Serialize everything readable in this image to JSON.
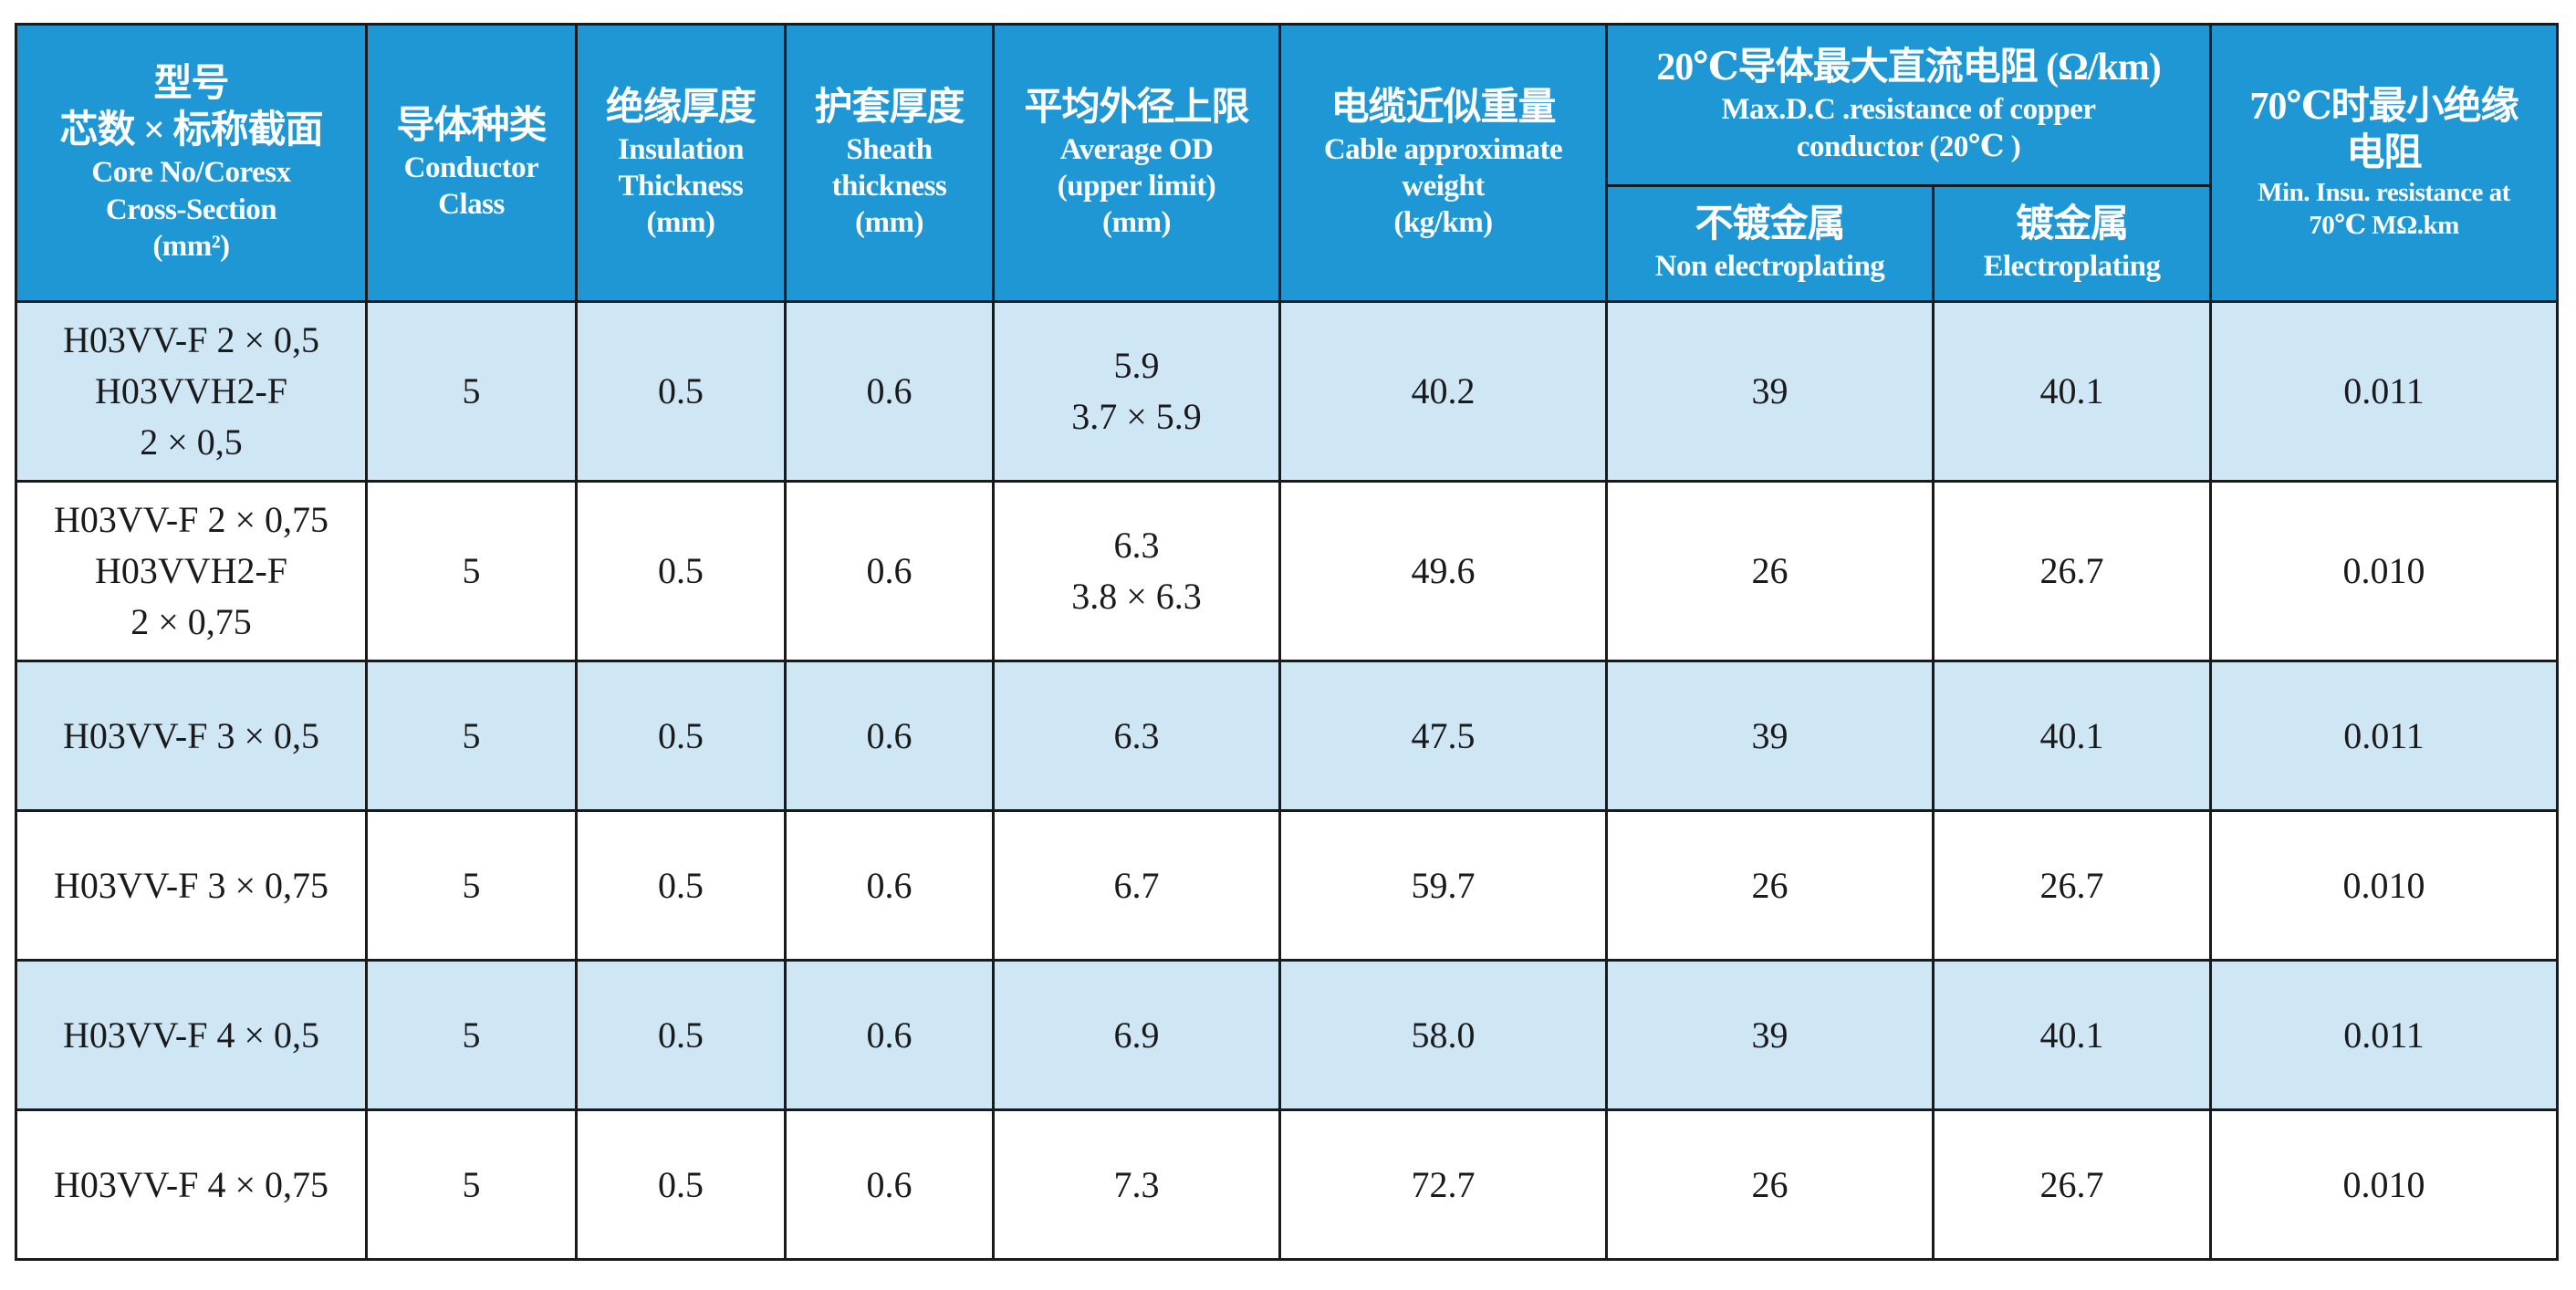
{
  "header": {
    "model": {
      "zh1": "型号",
      "zh2": "芯数 × 标称截面",
      "en1": "Core No/Coresx",
      "en2": "Cross-Section",
      "en3": "(mm²)"
    },
    "conductor": {
      "zh": "导体种类",
      "en1": "Conductor",
      "en2": "Class"
    },
    "insulation": {
      "zh": "绝缘厚度",
      "en1": "Insulation",
      "en2": "Thickness",
      "en3": "(mm)"
    },
    "sheath": {
      "zh": "护套厚度",
      "en1": "Sheath",
      "en2": "thickness",
      "en3": "(mm)"
    },
    "od": {
      "zh": "平均外径上限",
      "en1": "Average OD",
      "en2": "(upper limit)",
      "en3": "(mm)"
    },
    "weight": {
      "zh": "电缆近似重量",
      "en1": "Cable approximate",
      "en2": "weight",
      "en3": "(kg/km)"
    },
    "resistance": {
      "zh": "20℃导体最大直流电阻 (Ω/km)",
      "en1": "Max.D.C .resistance of copper",
      "en2": "conductor (20℃ )",
      "non": {
        "zh": "不镀金属",
        "en": "Non electroplating"
      },
      "plated": {
        "zh": "镀金属",
        "en": "Electroplating"
      }
    },
    "insu_res": {
      "zh1": "70℃时最小绝缘",
      "zh2": "电阻",
      "en1": "Min. Insu. resistance at",
      "en2": "70℃ MΩ.km"
    }
  },
  "rows": [
    {
      "model": [
        "H03VV-F 2 × 0,5",
        "H03VVH2-F",
        "2 × 0,5"
      ],
      "cls": "5",
      "ins": "0.5",
      "sh": "0.6",
      "od": [
        "5.9",
        "3.7 × 5.9"
      ],
      "wt": "40.2",
      "non": "39",
      "pl": "40.1",
      "ir": "0.011"
    },
    {
      "model": [
        "H03VV-F 2 × 0,75",
        "H03VVH2-F",
        "2 × 0,75"
      ],
      "cls": "5",
      "ins": "0.5",
      "sh": "0.6",
      "od": [
        "6.3",
        "3.8 × 6.3"
      ],
      "wt": "49.6",
      "non": "26",
      "pl": "26.7",
      "ir": "0.010"
    },
    {
      "model": [
        "H03VV-F 3 × 0,5"
      ],
      "cls": "5",
      "ins": "0.5",
      "sh": "0.6",
      "od": [
        "6.3"
      ],
      "wt": "47.5",
      "non": "39",
      "pl": "40.1",
      "ir": "0.011"
    },
    {
      "model": [
        "H03VV-F 3 × 0,75"
      ],
      "cls": "5",
      "ins": "0.5",
      "sh": "0.6",
      "od": [
        "6.7"
      ],
      "wt": "59.7",
      "non": "26",
      "pl": "26.7",
      "ir": "0.010"
    },
    {
      "model": [
        "H03VV-F 4 × 0,5"
      ],
      "cls": "5",
      "ins": "0.5",
      "sh": "0.6",
      "od": [
        "6.9"
      ],
      "wt": "58.0",
      "non": "39",
      "pl": "40.1",
      "ir": "0.011"
    },
    {
      "model": [
        "H03VV-F 4 × 0,75"
      ],
      "cls": "5",
      "ins": "0.5",
      "sh": "0.6",
      "od": [
        "7.3"
      ],
      "wt": "72.7",
      "non": "26",
      "pl": "26.7",
      "ir": "0.010"
    }
  ],
  "colors": {
    "header_bg": "#1f97d5",
    "alt_row_bg": "#cfe6f5",
    "border": "#1a1a1a"
  }
}
